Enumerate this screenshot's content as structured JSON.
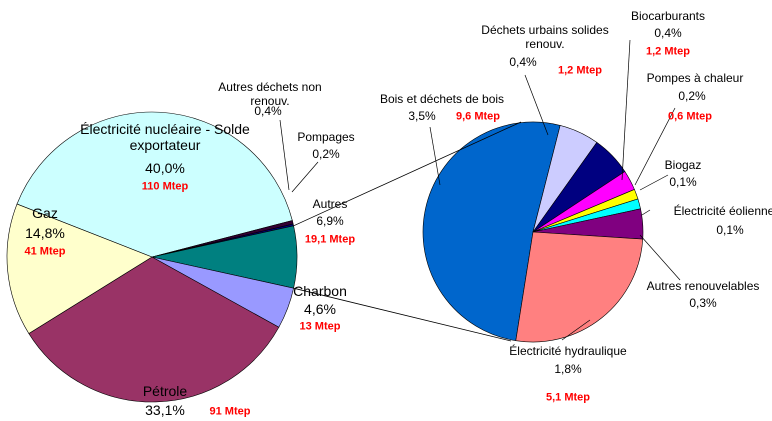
{
  "chart_data": [
    {
      "type": "pie",
      "categories": [
        "Électricité nucléaire - Solde exportateur",
        "Autres déchets non renouv.",
        "Pompages",
        "Autres",
        "Charbon",
        "Pétrole",
        "Gaz"
      ],
      "values": [
        40.0,
        0.4,
        0.2,
        6.9,
        4.6,
        33.1,
        14.8
      ],
      "value_labels": [
        "40,0%",
        "0,4%",
        "0,2%",
        "6,9%",
        "4,6%",
        "33,1%",
        "14,8%"
      ],
      "mtep_values": [
        110,
        null,
        null,
        19.1,
        13,
        91,
        41
      ],
      "mtep_labels": [
        "110 Mtep",
        null,
        null,
        "19,1 Mtep",
        "13 Mtep",
        "91 Mtep",
        "41 Mtep"
      ],
      "colors": [
        "#ccffff",
        "#330033",
        "#000080",
        "#008080",
        "#9999ff",
        "#993366",
        "#ffffcc"
      ]
    },
    {
      "type": "pie",
      "categories": [
        "Bois et déchets de bois",
        "Déchets urbains solides renouv.",
        "Biocarburants",
        "Pompes à chaleur",
        "Biogaz",
        "Électricité éolienne",
        "Autres renouvelables",
        "Électricité hydraulique"
      ],
      "values": [
        3.5,
        0.4,
        0.4,
        0.2,
        0.1,
        0.1,
        0.3,
        1.8
      ],
      "value_labels": [
        "3,5%",
        "0,4%",
        "0,4%",
        "0,2%",
        "0,1%",
        "0,1%",
        "0,3%",
        "1,8%"
      ],
      "mtep_values": [
        9.6,
        1.2,
        1.2,
        0.6,
        null,
        null,
        null,
        5.1
      ],
      "mtep_labels": [
        "9,6 Mtep",
        "1,2 Mtep",
        "1,2 Mtep",
        "0,6 Mtep",
        null,
        null,
        null,
        "5,1 Mtep"
      ],
      "colors": [
        "#0066cc",
        "#ccccff",
        "#000080",
        "#ff00ff",
        "#ffff00",
        "#00ffff",
        "#800080",
        "#ff8080"
      ]
    }
  ]
}
